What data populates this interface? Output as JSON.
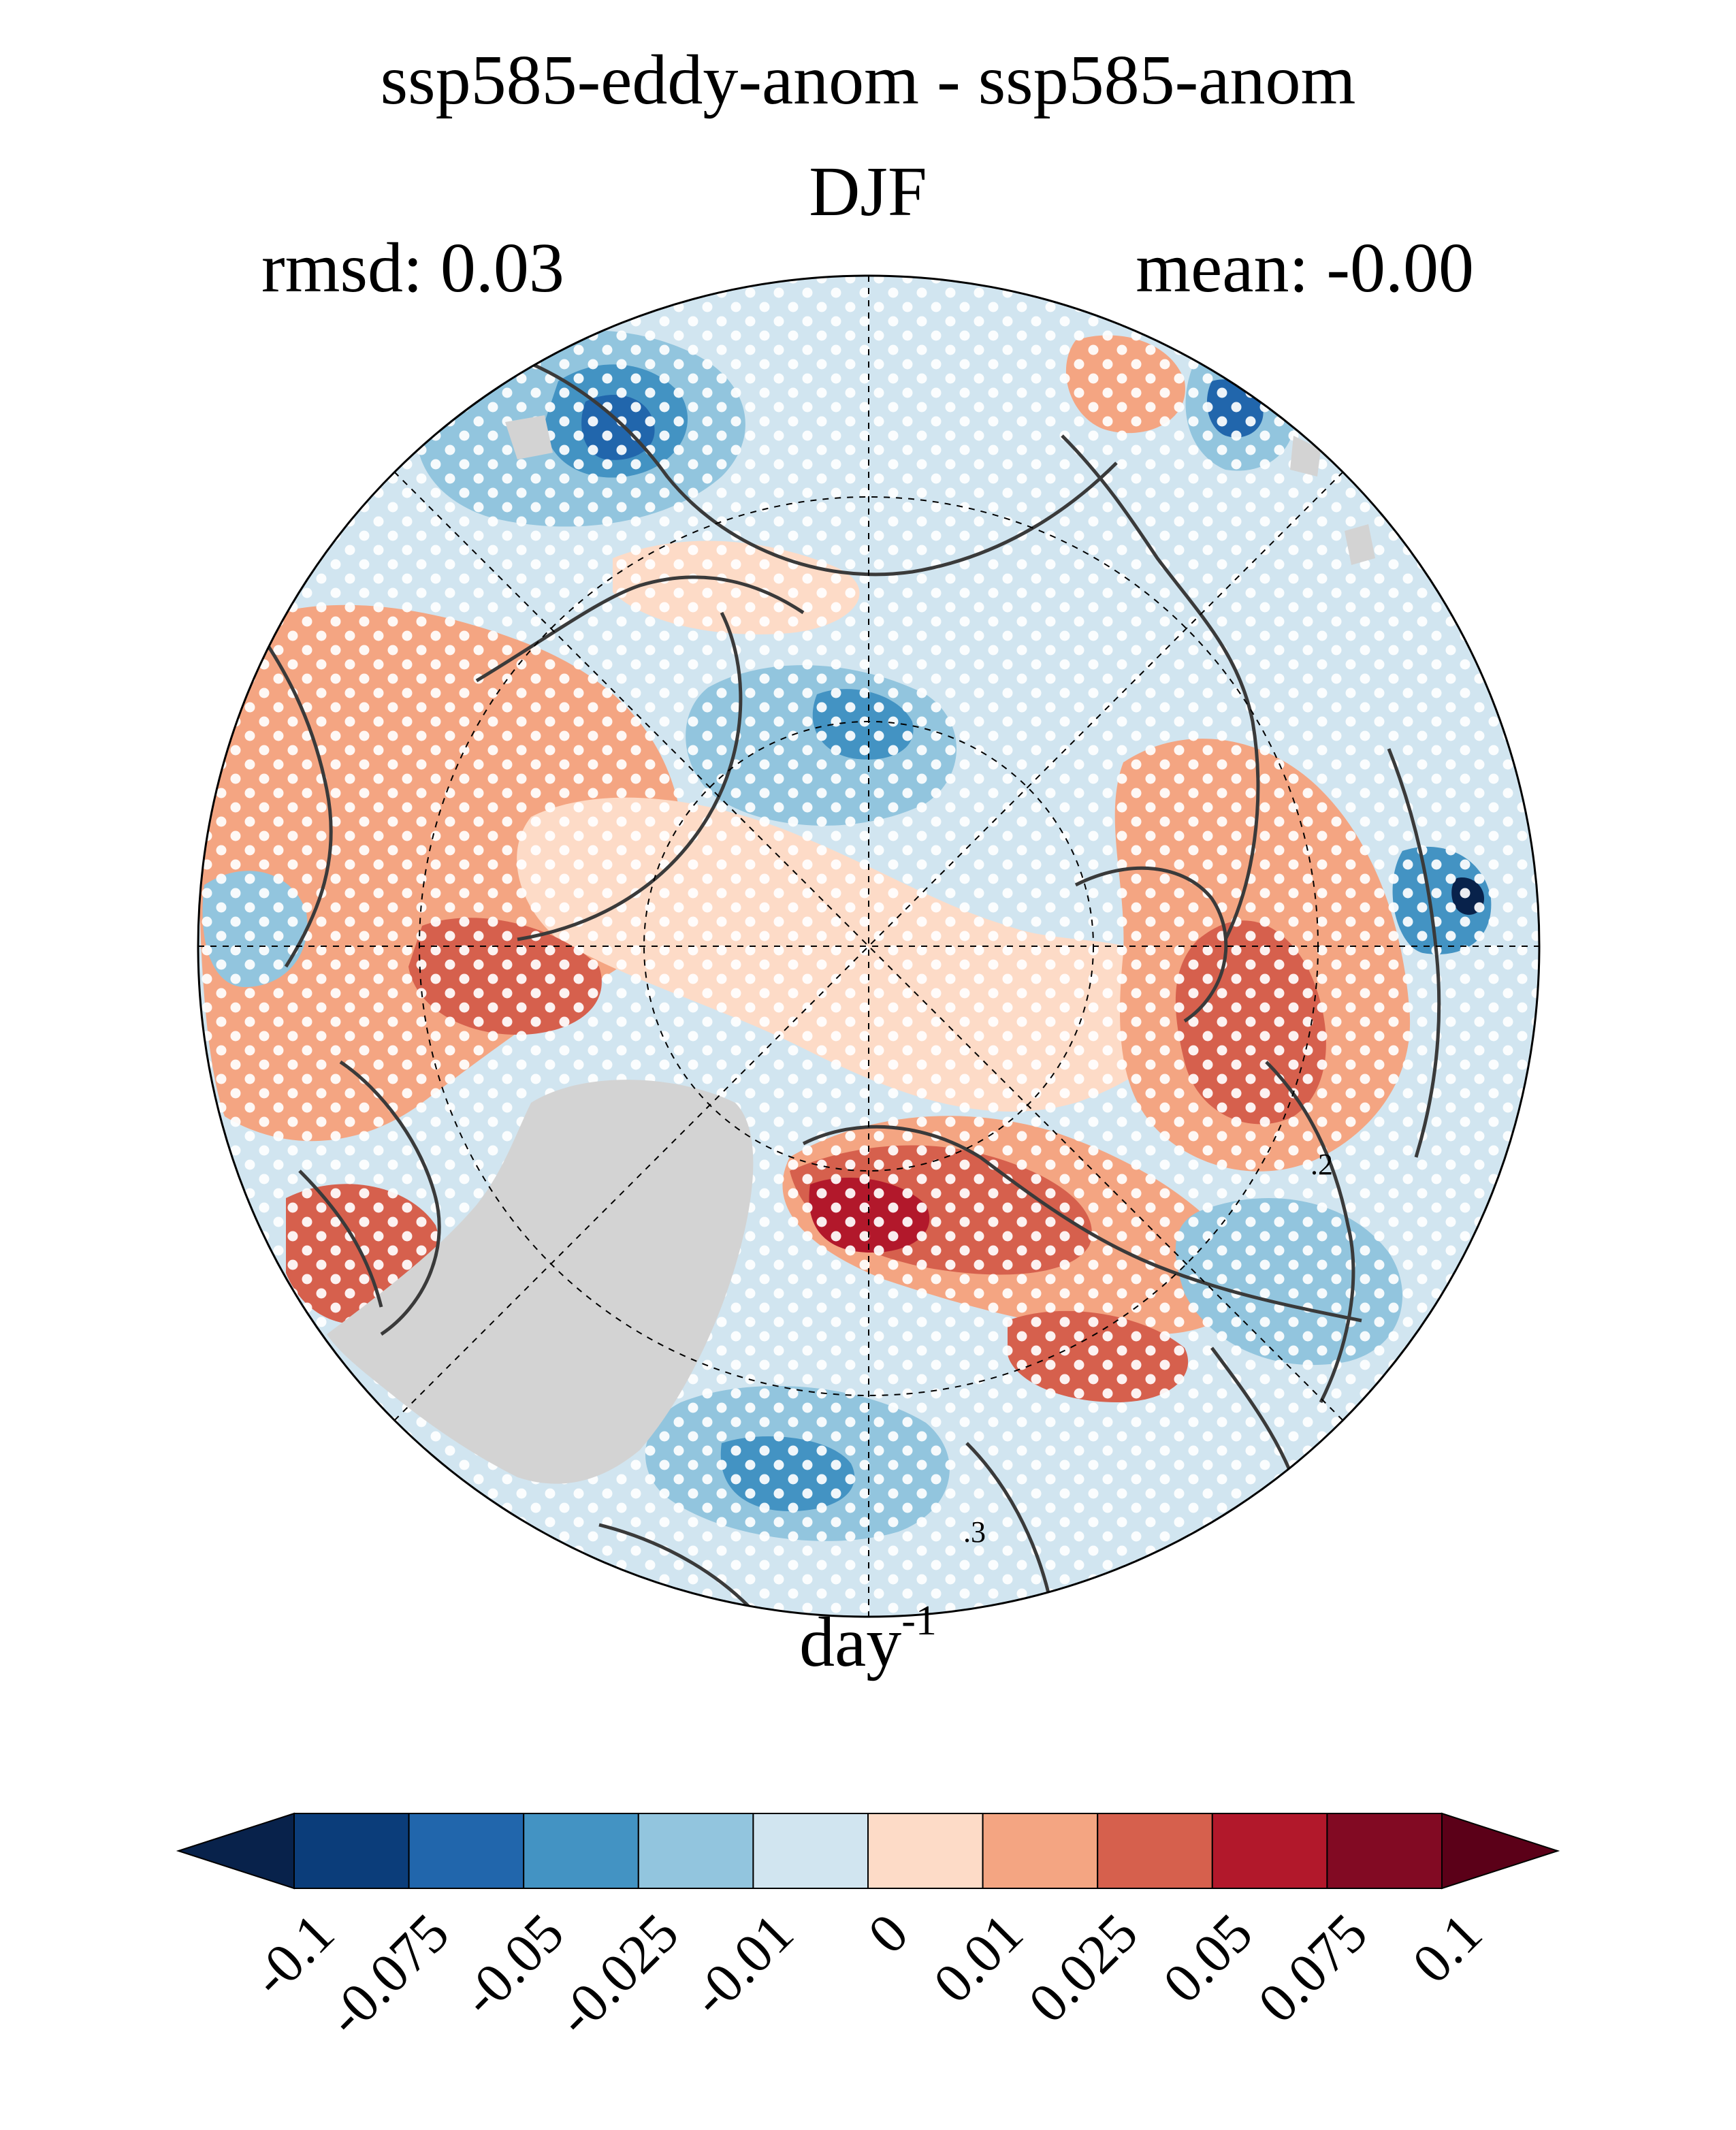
{
  "header": {
    "title": "ssp585-eddy-anom - ssp585-anom",
    "season": "DJF",
    "rmsd_label": "rmsd: 0.03",
    "mean_label": "mean: -0.00"
  },
  "map": {
    "projection": "north-polar-stereographic",
    "stippling": "white dots mark significant areas",
    "land_mask_color": "#d3d3d3",
    "contour_color": "#3a3a3a",
    "contour_labels": [
      ".2",
      ".3"
    ]
  },
  "colorbar": {
    "units_base": "day",
    "units_exponent": "-1",
    "tick_labels": [
      "-0.1",
      "-0.075",
      "-0.05",
      "-0.025",
      "-0.01",
      "0",
      "0.01",
      "0.025",
      "0.05",
      "0.075",
      "0.1"
    ],
    "levels": [
      -0.1,
      -0.075,
      -0.05,
      -0.025,
      -0.01,
      0,
      0.01,
      0.025,
      0.05,
      0.075,
      0.1
    ],
    "colors": [
      "#08224b",
      "#0b3d7a",
      "#2166ac",
      "#4393c3",
      "#92c5de",
      "#d1e5f0",
      "#fddbc7",
      "#f4a582",
      "#d6604d",
      "#b2182b",
      "#820a23",
      "#5b0018"
    ]
  }
}
